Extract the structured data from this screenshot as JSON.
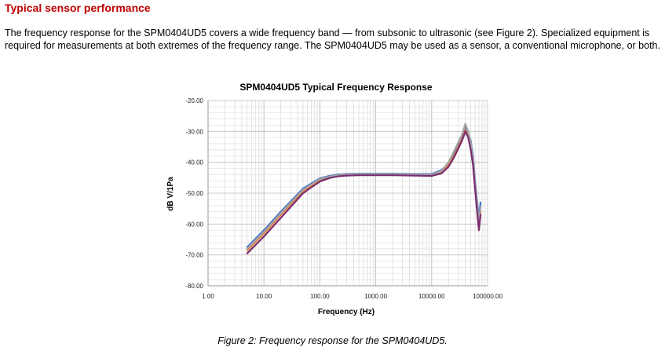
{
  "section": {
    "heading": "Typical sensor performance",
    "paragraph": "The frequency response for the SPM0404UD5 covers a wide frequency band — from subsonic to ultrasonic (see Figure 2). Specialized equipment is required for measurements at both extremes of the frequency range. The SPM0404UD5 may be used as a sensor, a conventional microphone, or both."
  },
  "figure": {
    "caption": "Figure 2: Frequency response for the SPM0404UD5."
  },
  "chart_data": {
    "type": "line",
    "title": "SPM0404UD5 Typical Frequency Response",
    "xlabel": "Frequency (Hz)",
    "ylabel": "dB V/1Pa",
    "xscale": "log",
    "xlim": [
      1,
      100000
    ],
    "ylim": [
      -80,
      -20
    ],
    "x_ticks": [
      "1.00",
      "10.00",
      "100.00",
      "1000.00",
      "10000.00",
      "100000.00"
    ],
    "y_ticks": [
      "-20.00",
      "-30.00",
      "-40.00",
      "-50.00",
      "-60.00",
      "-70.00",
      "-80.00"
    ],
    "grid": true,
    "legend": "none",
    "series": [
      {
        "color": "#4472c4",
        "x": [
          5,
          10,
          20,
          50,
          100,
          150,
          200,
          300,
          500,
          1000,
          2000,
          5000,
          10000,
          15000,
          20000,
          25000,
          30000,
          35000,
          40000,
          45000,
          50000,
          55000,
          60000,
          65000,
          70000,
          75000
        ],
        "y": [
          -67.5,
          -62,
          -56,
          -48.5,
          -45.2,
          -44.4,
          -44,
          -43.8,
          -43.7,
          -43.7,
          -43.7,
          -43.8,
          -43.8,
          -42.5,
          -40.5,
          -37,
          -34,
          -31.5,
          -28,
          -30.5,
          -33,
          -38,
          -46,
          -53,
          -58,
          -53
        ]
      },
      {
        "color": "#ed7d31",
        "x": [
          5,
          10,
          20,
          50,
          100,
          150,
          200,
          300,
          500,
          1000,
          2000,
          5000,
          10000,
          15000,
          20000,
          25000,
          30000,
          35000,
          40000,
          45000,
          50000,
          55000,
          60000,
          65000,
          70000,
          75000
        ],
        "y": [
          -68.5,
          -63,
          -57,
          -49.3,
          -45.7,
          -44.8,
          -44.3,
          -44.1,
          -44,
          -44,
          -44,
          -44.1,
          -44.2,
          -43.2,
          -41,
          -38,
          -35,
          -32.5,
          -29.5,
          -31.5,
          -35,
          -40,
          -48,
          -55,
          -61,
          -56
        ]
      },
      {
        "color": "#a5a5a5",
        "x": [
          5,
          10,
          20,
          50,
          100,
          150,
          200,
          300,
          500,
          1000,
          2000,
          5000,
          10000,
          15000,
          20000,
          25000,
          30000,
          35000,
          40000,
          45000,
          50000,
          55000,
          60000,
          65000,
          70000,
          75000
        ],
        "y": [
          -68,
          -62.5,
          -56.5,
          -48.9,
          -45.4,
          -44.6,
          -44.2,
          -44,
          -43.9,
          -43.9,
          -43.9,
          -44,
          -44,
          -42.8,
          -40,
          -36.5,
          -33.5,
          -31,
          -27.5,
          -30,
          -33.5,
          -39,
          -47,
          -54,
          -59.5,
          -54.5
        ]
      },
      {
        "color": "#7b2c6e",
        "x": [
          5,
          10,
          20,
          50,
          100,
          150,
          200,
          300,
          500,
          1000,
          2000,
          5000,
          10000,
          15000,
          20000,
          25000,
          30000,
          35000,
          40000,
          45000,
          50000,
          55000,
          60000,
          65000,
          70000,
          75000
        ],
        "y": [
          -69.5,
          -64,
          -58,
          -50,
          -46.2,
          -45.1,
          -44.6,
          -44.3,
          -44.2,
          -44.2,
          -44.2,
          -44.3,
          -44.4,
          -43.6,
          -41.5,
          -38.5,
          -35.5,
          -33,
          -30,
          -32,
          -36,
          -41,
          -49,
          -56,
          -62,
          -57
        ]
      }
    ]
  }
}
